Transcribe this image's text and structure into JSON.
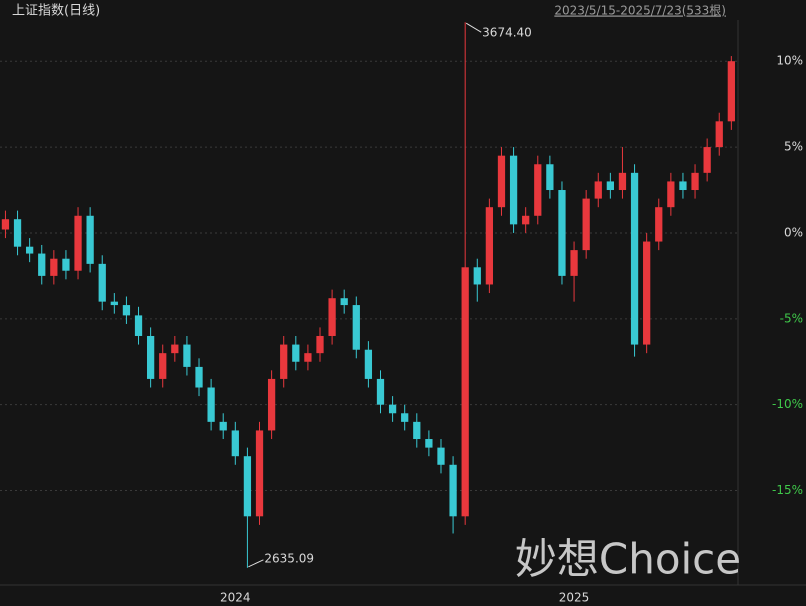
{
  "chart_data": {
    "type": "candlestick",
    "title": "上证指数(日线)",
    "subtitle": "2023/5/15-2025/7/23(533根)",
    "watermark": "妙想Choice",
    "annotations": [
      "3674.40",
      "2635.09"
    ],
    "up_color": "#e8383d",
    "down_color": "#39c9d3",
    "grid": true,
    "ylim": [
      -20.5,
      12.4
    ],
    "yticks": [
      {
        "value": 10,
        "label": "10%"
      },
      {
        "value": 5,
        "label": "5%"
      },
      {
        "value": 0,
        "label": "0%"
      },
      {
        "value": -5,
        "label": "-5%"
      },
      {
        "value": -10,
        "label": "-10%"
      },
      {
        "value": -15,
        "label": "-15%"
      }
    ],
    "categories": [
      null,
      null,
      null,
      null,
      null,
      null,
      null,
      null,
      null,
      null,
      null,
      null,
      null,
      null,
      null,
      null,
      null,
      null,
      null,
      "2024",
      null,
      null,
      null,
      null,
      null,
      null,
      null,
      null,
      null,
      null,
      null,
      null,
      null,
      null,
      null,
      null,
      null,
      null,
      null,
      null,
      null,
      null,
      null,
      null,
      null,
      null,
      null,
      "2025",
      null,
      null,
      null,
      null,
      null,
      null,
      null,
      null,
      null,
      null,
      null,
      null,
      null
    ],
    "open": [
      0.2,
      0.8,
      -0.8,
      -1.2,
      -2.5,
      -1.5,
      -2.2,
      1.0,
      -1.8,
      -4.0,
      -4.2,
      -4.8,
      -6.0,
      -8.5,
      -7.0,
      -6.5,
      -7.8,
      -9.0,
      -11.0,
      -11.5,
      -13.0,
      -16.5,
      -11.5,
      -8.5,
      -6.5,
      -7.5,
      -7.0,
      -6.0,
      -3.8,
      -4.2,
      -6.8,
      -8.5,
      -10.0,
      -10.5,
      -11.0,
      -12.0,
      -12.5,
      -13.5,
      -16.5,
      -2.0,
      -3.0,
      1.5,
      4.5,
      0.5,
      1.0,
      4.0,
      2.5,
      -2.5,
      -1.0,
      2.0,
      3.0,
      2.5,
      3.5,
      -6.5,
      -0.5,
      1.5,
      3.0,
      2.5,
      3.5,
      5.0,
      6.5
    ],
    "high": [
      1.3,
      1.3,
      -0.3,
      -0.7,
      -1.0,
      -1.0,
      1.5,
      1.5,
      -1.3,
      -3.5,
      -3.7,
      -4.3,
      -5.5,
      -6.5,
      -6.0,
      -6.0,
      -7.3,
      -8.5,
      -10.5,
      -11.0,
      -12.5,
      -11.0,
      -8.0,
      -6.0,
      -6.0,
      -6.5,
      -5.5,
      -3.3,
      -3.3,
      -3.7,
      -6.3,
      -8.0,
      -9.5,
      -10.0,
      -10.5,
      -11.5,
      -12.0,
      -13.0,
      12.27,
      -1.5,
      2.0,
      5.0,
      5.0,
      1.5,
      4.5,
      4.5,
      3.0,
      -0.5,
      2.5,
      3.5,
      3.5,
      5.0,
      4.0,
      0.0,
      2.0,
      3.5,
      3.5,
      4.0,
      5.5,
      7.0,
      10.3
    ],
    "low": [
      -0.3,
      -1.3,
      -1.7,
      -3.0,
      -3.0,
      -2.7,
      -2.7,
      -2.3,
      -4.5,
      -4.7,
      -5.3,
      -6.5,
      -9.0,
      -9.0,
      -7.5,
      -8.3,
      -9.5,
      -11.5,
      -12.0,
      -13.5,
      -19.5,
      -17.0,
      -12.0,
      -9.0,
      -8.0,
      -8.0,
      -7.5,
      -6.5,
      -4.7,
      -7.3,
      -9.0,
      -10.5,
      -11.0,
      -11.5,
      -12.5,
      -13.0,
      -14.0,
      -17.5,
      -17.0,
      -4.0,
      -3.5,
      1.0,
      0.0,
      0.0,
      0.5,
      2.0,
      -3.0,
      -4.0,
      -1.5,
      1.5,
      2.0,
      2.0,
      -7.2,
      -7.0,
      -1.0,
      1.0,
      2.0,
      2.0,
      3.0,
      4.5,
      6.0
    ],
    "close": [
      0.8,
      -0.8,
      -1.2,
      -2.5,
      -1.5,
      -2.2,
      1.0,
      -1.8,
      -4.0,
      -4.2,
      -4.8,
      -6.0,
      -8.5,
      -7.0,
      -6.5,
      -7.8,
      -9.0,
      -11.0,
      -11.5,
      -13.0,
      -16.5,
      -11.5,
      -8.5,
      -6.5,
      -7.5,
      -7.0,
      -6.0,
      -3.8,
      -4.2,
      -6.8,
      -8.5,
      -10.0,
      -10.5,
      -11.0,
      -12.0,
      -12.5,
      -13.5,
      -16.5,
      -2.0,
      -3.0,
      1.5,
      4.5,
      0.5,
      1.0,
      4.0,
      2.5,
      -2.5,
      -1.0,
      2.0,
      3.0,
      2.5,
      3.5,
      -6.5,
      -0.5,
      1.5,
      3.0,
      2.5,
      3.5,
      5.0,
      6.5,
      10.0
    ]
  }
}
